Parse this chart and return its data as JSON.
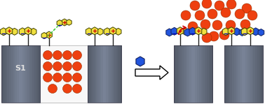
{
  "bg_color": "#ffffff",
  "pillar_fill_main": "#8898b0",
  "pillar_fill_light": "#a8b8c8",
  "pillar_fill_dark": "#606878",
  "pillar_edge": "#404050",
  "hexagon_fill": "#f0e040",
  "hexagon_edge": "#404000",
  "blue_hexagon_fill": "#2255dd",
  "blue_hexagon_edge": "#102060",
  "orange_circle_color": "#ee4010",
  "orange_circle_edge": "#993000",
  "red_plus_color": "#cc0000",
  "blue_minus_color": "#0000bb",
  "green_dashed_color": "#44cc44",
  "red_arrow_color": "#cc0000",
  "s1_text": "S1",
  "s1_text_color": "#dddddd",
  "arrow_fill": "#ffffff",
  "arrow_edge": "#000000",
  "stem_color": "#202020",
  "middle_pore_fill": "#ffffff"
}
